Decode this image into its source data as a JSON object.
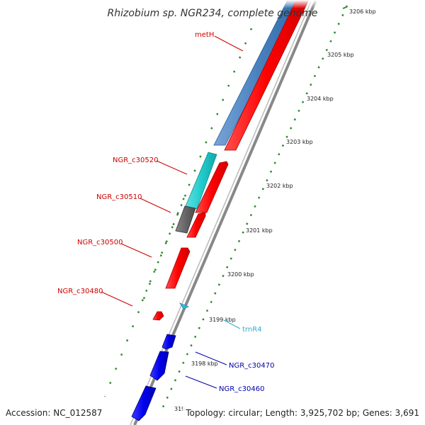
{
  "title": "Rhizobium sp. NGR234, complete genome",
  "footer": {
    "accession": "Accession: NC_012587",
    "stats": "Topology: circular; Length: 3,925,702 bp; Genes: 3,691"
  },
  "ticks": [
    {
      "label": "3206 kbp"
    },
    {
      "label": "3205 kbp"
    },
    {
      "label": "3204 kbp"
    },
    {
      "label": "3203 kbp"
    },
    {
      "label": "3202 kbp"
    },
    {
      "label": "3201 kbp"
    },
    {
      "label": "3200 kbp"
    },
    {
      "label": "3199 kbp"
    },
    {
      "label": "3198 kbp"
    },
    {
      "label": "319"
    }
  ],
  "gene_labels": [
    {
      "text": "metH",
      "color": "#cc0000"
    },
    {
      "text": "NGR_c30520",
      "color": "#cc0000"
    },
    {
      "text": "NGR_c30510",
      "color": "#cc0000"
    },
    {
      "text": "NGR_c30500",
      "color": "#cc0000"
    },
    {
      "text": "NGR_c30480",
      "color": "#cc0000"
    },
    {
      "text": "trnR4",
      "color": "#33aacc"
    },
    {
      "text": "NGR_c30470",
      "color": "#0000aa"
    },
    {
      "text": "NGR_c30460",
      "color": "#0000aa"
    }
  ],
  "colors": {
    "cds_forward": "#ff0000",
    "cds_reverse": "#0000ee",
    "rrna_track": "#4a82c0",
    "cyan_track": "#22cccc",
    "gray_track": "#666666",
    "trna": "#33bbdd",
    "backbone": "#888888",
    "gc_dots": "#2a8a2a"
  }
}
